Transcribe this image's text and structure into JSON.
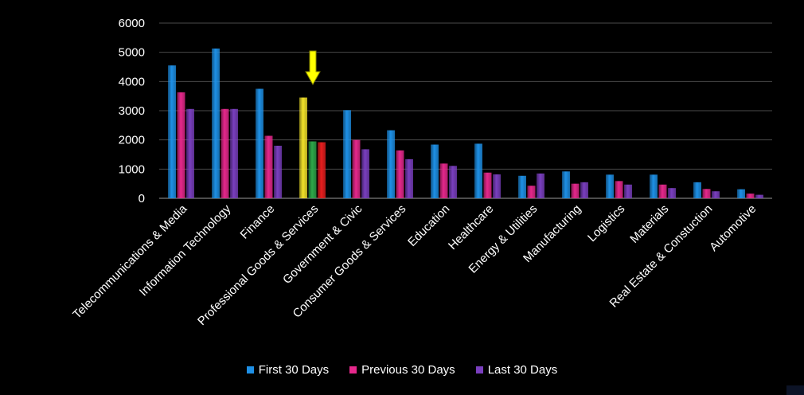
{
  "chart_data": {
    "type": "bar",
    "categories": [
      "Telecommunications & Media",
      "Information Technology",
      "Finance",
      "Professional Goods & Services",
      "Government & Civic",
      "Consumer Goods &  Services",
      "Education",
      "Healthcare",
      "Energy & Utilities",
      "Manufacturing",
      "Logistics",
      "Materials",
      "Real Estate & Constuction",
      "Automotive"
    ],
    "series": [
      {
        "name": "First 30 Days",
        "color": "#1e90e6",
        "values": [
          4550,
          5130,
          3750,
          3450,
          3020,
          2330,
          1840,
          1870,
          770,
          920,
          810,
          810,
          550,
          310
        ]
      },
      {
        "name": "Previous 30 Days",
        "color": "#e6288c",
        "values": [
          3630,
          3060,
          2140,
          1950,
          2000,
          1640,
          1190,
          880,
          430,
          500,
          590,
          470,
          320,
          160
        ]
      },
      {
        "name": "Last 30 Days",
        "color": "#7a3fbf",
        "values": [
          3060,
          3060,
          1800,
          1920,
          1680,
          1340,
          1110,
          820,
          850,
          550,
          470,
          350,
          240,
          120
        ]
      }
    ],
    "highlight": {
      "category_index": 3,
      "colors": [
        "#f2e22a",
        "#2ea84a",
        "#e61e1e"
      ],
      "arrow_color": "#ffff00"
    },
    "yticks": [
      0,
      1000,
      2000,
      3000,
      4000,
      5000,
      6000
    ],
    "ylim": [
      0,
      6000
    ],
    "grid": true,
    "legend_position": "bottom",
    "title": "",
    "xlabel": "",
    "ylabel": ""
  }
}
